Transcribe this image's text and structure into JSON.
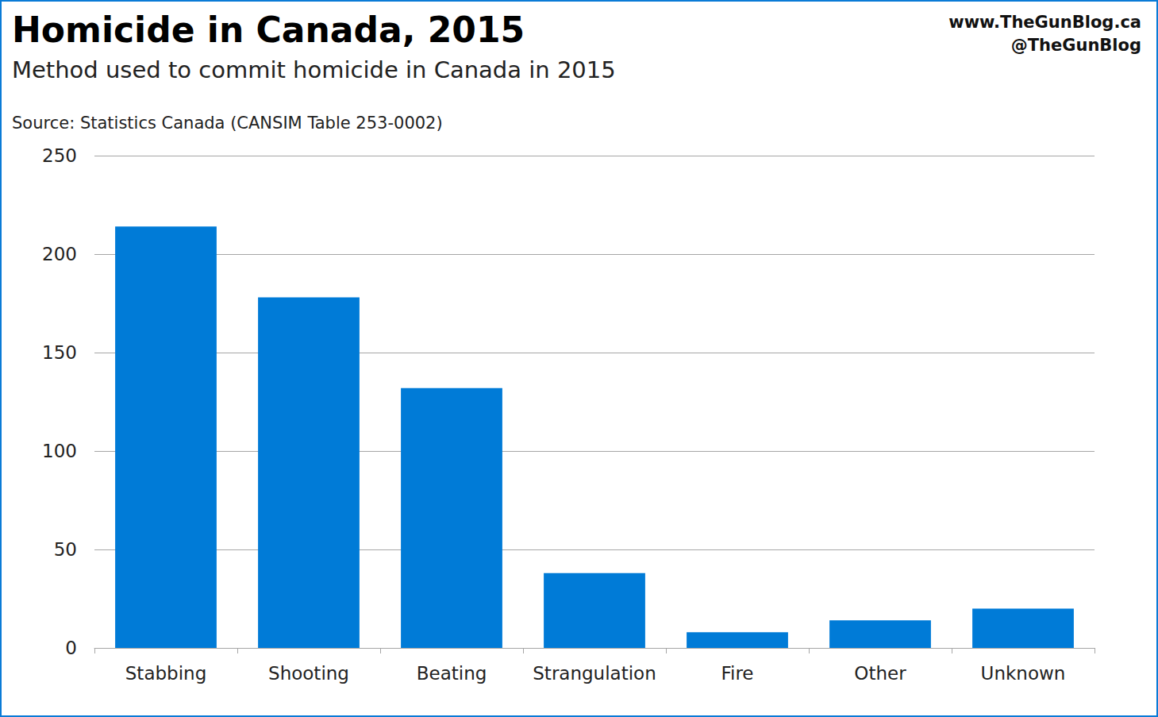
{
  "chart_data": {
    "type": "bar",
    "title": "Homicide in Canada, 2015",
    "subtitle": "Method used to commit homicide in Canada in 2015",
    "source": "Source: Statistics Canada (CANSIM Table 253-0002)",
    "annotations": [
      "www.TheGunBlog.ca",
      "@TheGunBlog"
    ],
    "categories": [
      "Stabbing",
      "Shooting",
      "Beating",
      "Strangulation",
      "Fire",
      "Other",
      "Unknown"
    ],
    "values": [
      214,
      178,
      132,
      38,
      8,
      14,
      20
    ],
    "color": "#007bd7",
    "ylim": [
      0,
      250
    ],
    "yticks": [
      0,
      50,
      100,
      150,
      200,
      250
    ],
    "grid": true
  }
}
